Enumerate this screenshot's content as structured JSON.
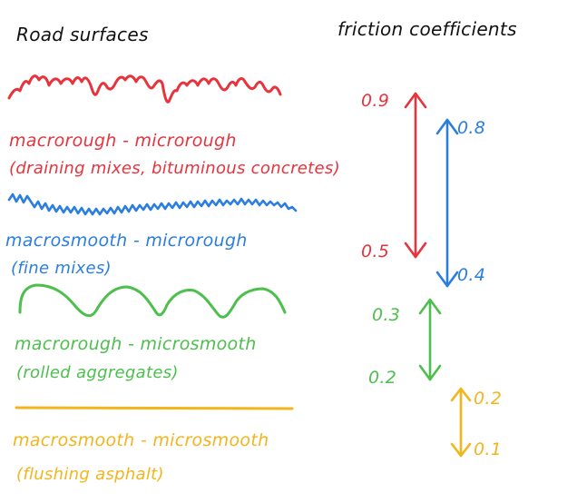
{
  "headings": {
    "left": "Road surfaces",
    "right": "friction coefficients"
  },
  "surfaces": [
    {
      "label": "macrorough - microrough",
      "detail": "(draining mixes, bituminous concretes)",
      "color": "#e8323c",
      "friction_max": "0.9",
      "friction_min": "0.5"
    },
    {
      "label": "macrosmooth - microrough",
      "detail": "(fine mixes)",
      "color": "#2a7de1",
      "friction_max": "0.8",
      "friction_min": "0.4"
    },
    {
      "label": "macrorough - microsmooth",
      "detail": "(rolled aggregates)",
      "color": "#4cbf4c",
      "friction_max": "0.3",
      "friction_min": "0.2"
    },
    {
      "label": "macrosmooth - microsmooth",
      "detail": "(flushing asphalt)",
      "color": "#f2b51c",
      "friction_max": "0.2",
      "friction_min": "0.1"
    }
  ]
}
